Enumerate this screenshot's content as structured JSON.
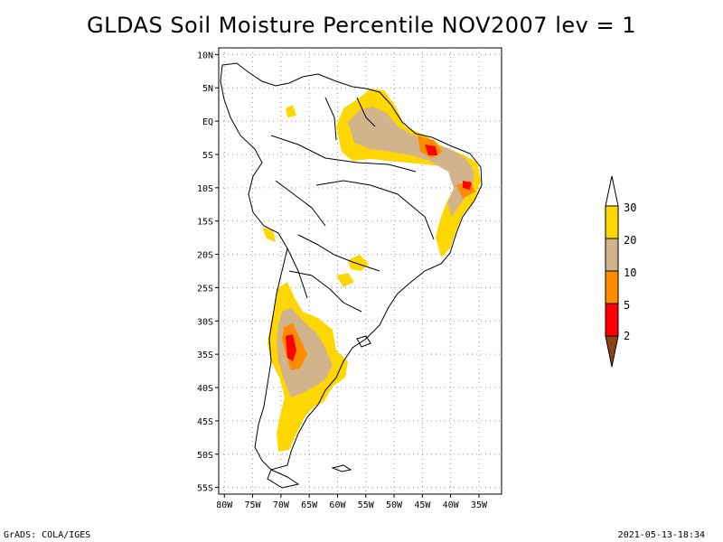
{
  "title": "GLDAS Soil Moisture Percentile NOV2007 lev = 1",
  "footer": {
    "left": "GrADS: COLA/IGES",
    "right": "2021-05-13-18:34"
  },
  "map": {
    "lat_labels": [
      "10N",
      "5N",
      "EQ",
      "5S",
      "10S",
      "15S",
      "20S",
      "25S",
      "30S",
      "35S",
      "40S",
      "45S",
      "50S",
      "55S"
    ],
    "lon_labels": [
      "80W",
      "75W",
      "70W",
      "65W",
      "60W",
      "55W",
      "50W",
      "45W",
      "40W",
      "35W"
    ],
    "lon_range": [
      -81,
      -31
    ],
    "lat_range": [
      -56,
      11
    ],
    "grid": "dotted"
  },
  "colorbar": {
    "levels": [
      "2",
      "5",
      "10",
      "20",
      "30"
    ],
    "colors": {
      "below_2": "#8b4513",
      "2_5": "#ff0000",
      "5_10": "#ff8c00",
      "10_20": "#d2b48c",
      "20_30": "#ffd700",
      "above_30": "#ffffff"
    }
  }
}
